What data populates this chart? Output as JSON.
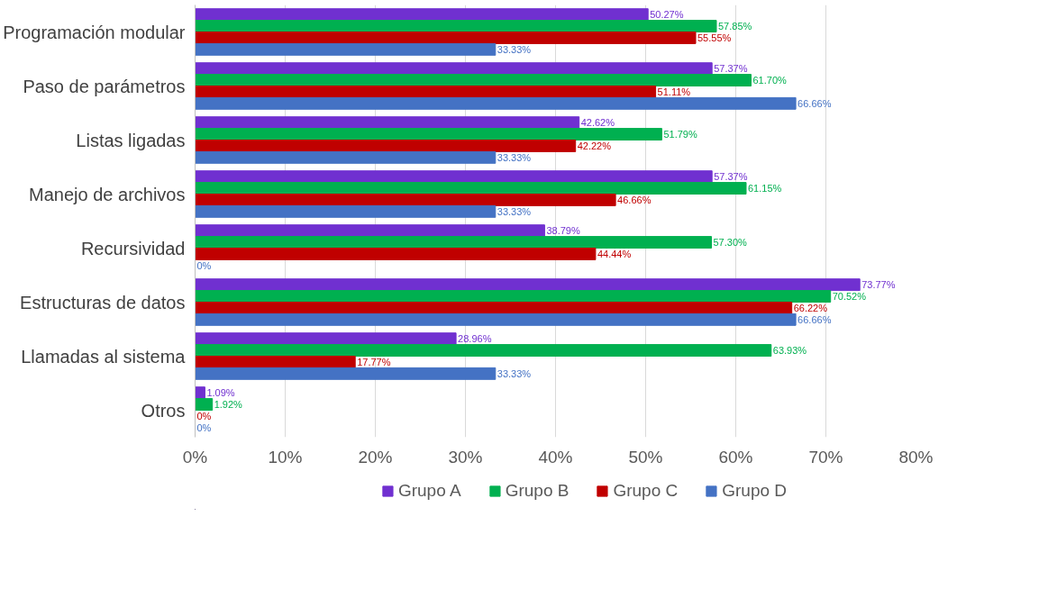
{
  "chart_data": {
    "type": "bar",
    "orientation": "horizontal",
    "categories": [
      "Programación modular",
      "Paso de parámetros",
      "Listas ligadas",
      "Manejo de archivos",
      "Recursividad",
      "Estructuras de datos",
      "Llamadas al sistema",
      "Otros"
    ],
    "series": [
      {
        "name": "Grupo A",
        "color": "#7030d0",
        "values": [
          50.27,
          57.37,
          42.62,
          57.37,
          38.79,
          73.77,
          28.96,
          1.09
        ],
        "value_labels": [
          "50.27%",
          "57.37%",
          "42.62%",
          "57.37%",
          "38.79%",
          "73.77%",
          "28.96%",
          "1.09%"
        ]
      },
      {
        "name": "Grupo B",
        "color": "#00b050",
        "values": [
          57.85,
          61.7,
          51.79,
          61.15,
          57.3,
          70.52,
          63.93,
          1.92
        ],
        "value_labels": [
          "57.85%",
          "61.70%",
          "51.79%",
          "61.15%",
          "57.30%",
          "70.52%",
          "63.93%",
          "1.92%"
        ]
      },
      {
        "name": "Grupo C",
        "color": "#c00000",
        "values": [
          55.55,
          51.11,
          42.22,
          46.66,
          44.44,
          66.22,
          17.77,
          0
        ],
        "value_labels": [
          "55.55%",
          "51.11%",
          "42.22%",
          "46.66%",
          "44.44%",
          "66.22%",
          "17.77%",
          "0%"
        ]
      },
      {
        "name": "Grupo D",
        "color": "#4472c4",
        "values": [
          33.33,
          66.66,
          33.33,
          33.33,
          0,
          66.66,
          33.33,
          0
        ],
        "value_labels": [
          "33.33%",
          "66.66%",
          "33.33%",
          "33.33%",
          "0%",
          "66.66%",
          "33.33%",
          "0%"
        ]
      }
    ],
    "xlim": [
      0,
      80
    ],
    "xticks": [
      {
        "value": 0,
        "label": "0%"
      },
      {
        "value": 10,
        "label": "10%"
      },
      {
        "value": 20,
        "label": "20%"
      },
      {
        "value": 30,
        "label": "30%"
      },
      {
        "value": 40,
        "label": "40%"
      },
      {
        "value": 50,
        "label": "50%"
      },
      {
        "value": 60,
        "label": "60%"
      },
      {
        "value": 70,
        "label": "70%"
      },
      {
        "value": 80,
        "label": "80%"
      }
    ],
    "grid": "x",
    "legend": "bottom"
  }
}
